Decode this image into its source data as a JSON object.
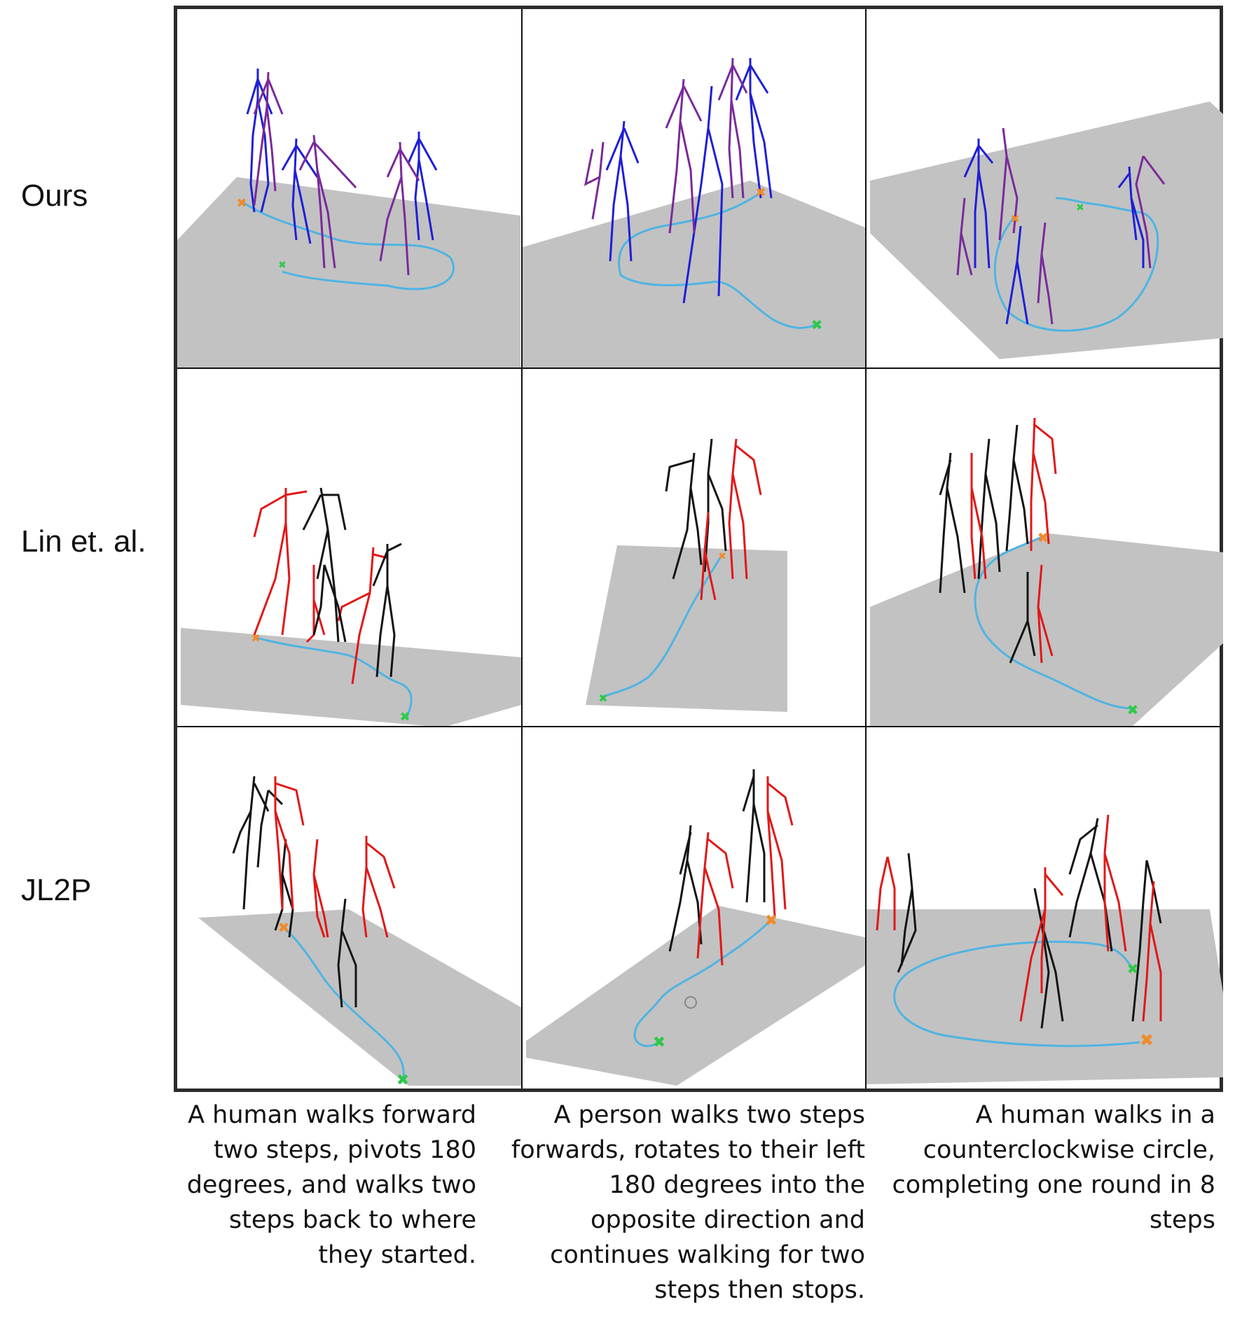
{
  "rows": [
    {
      "label": "Ours"
    },
    {
      "label": "Lin et. al."
    },
    {
      "label": "JL2P"
    }
  ],
  "captions": [
    [
      "A human walks forward",
      "two steps, pivots 180",
      "degrees, and walks two",
      "steps back to where",
      "they started."
    ],
    [
      "A person walks two steps",
      "forwards, rotates to their left",
      "180 degrees into the",
      "opposite direction and",
      "continues walking for two",
      "steps then stops."
    ],
    [
      "A human walks in a",
      "counterclockwise circle,",
      "completing one round in 8",
      "steps"
    ]
  ],
  "colors": {
    "floor": "#c2c2c2",
    "trajectory": "#4fb4e2",
    "start_marker": "#f08a2a",
    "end_marker": "#2ec94a",
    "ours_skeleton_a": "#1f1fd6",
    "ours_skeleton_b": "#7a2a9a",
    "baseline_skeleton_a": "#e01818",
    "baseline_skeleton_b": "#141414"
  }
}
